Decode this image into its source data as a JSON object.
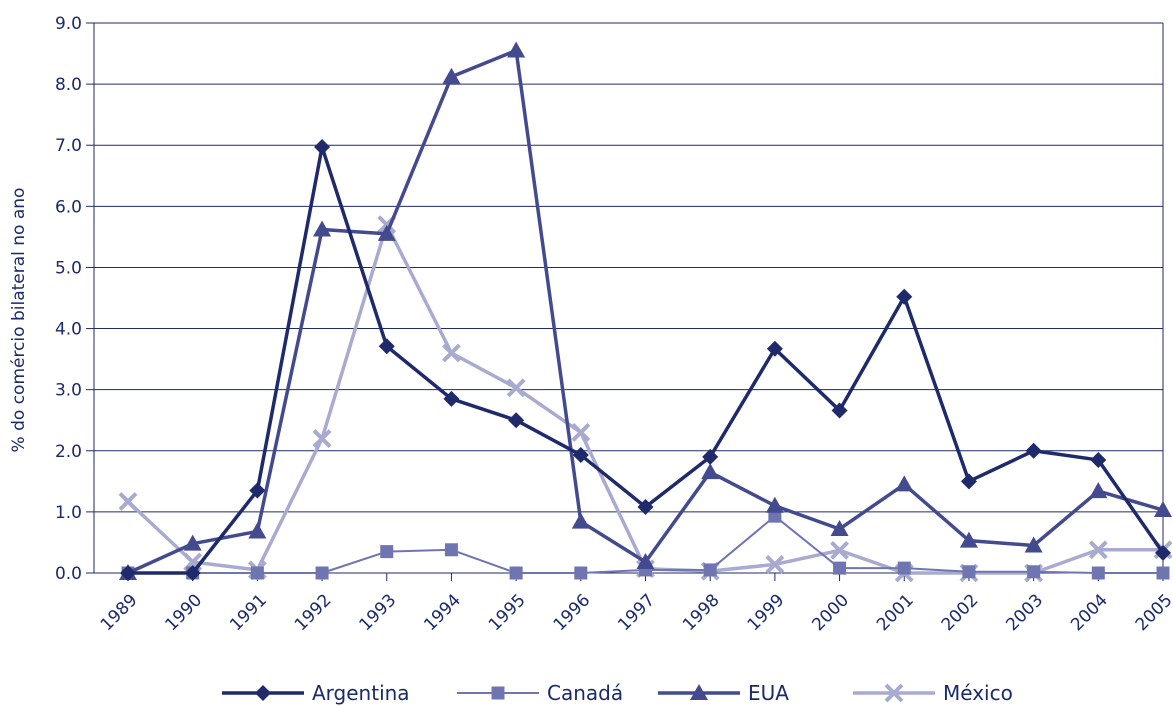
{
  "chart_data": {
    "type": "line",
    "title": "",
    "xlabel": "",
    "ylabel": "% do comércio bilateral no ano",
    "ylim": [
      0,
      9
    ],
    "yticks": [
      "0.0",
      "1.0",
      "2.0",
      "3.0",
      "4.0",
      "5.0",
      "6.0",
      "7.0",
      "8.0",
      "9.0"
    ],
    "grid": true,
    "legend_position": "bottom",
    "categories": [
      "1989",
      "1990",
      "1991",
      "1992",
      "1993",
      "1994",
      "1995",
      "1996",
      "1997",
      "1998",
      "1999",
      "2000",
      "2001",
      "2002",
      "2003",
      "2004",
      "2005"
    ],
    "series": [
      {
        "name": "Argentina",
        "color": "#1f2a6b",
        "marker": "diamond",
        "width": 3.5,
        "values": [
          0.0,
          0.0,
          1.35,
          6.97,
          3.71,
          2.85,
          2.5,
          1.93,
          1.08,
          1.9,
          3.67,
          2.66,
          4.52,
          1.5,
          2.0,
          1.85,
          0.33
        ]
      },
      {
        "name": "Canadá",
        "color": "#6f75b1",
        "marker": "square",
        "width": 2,
        "values": [
          0.0,
          0.0,
          0.0,
          0.0,
          0.35,
          0.38,
          0.0,
          0.0,
          0.05,
          0.05,
          0.93,
          0.08,
          0.08,
          0.02,
          0.02,
          0.0,
          0.0
        ]
      },
      {
        "name": "EUA",
        "color": "#434a8e",
        "marker": "triangle",
        "width": 3.5,
        "values": [
          0.0,
          0.48,
          0.68,
          5.62,
          5.55,
          8.12,
          8.55,
          0.84,
          0.18,
          1.65,
          1.1,
          0.72,
          1.45,
          0.53,
          0.45,
          1.34,
          1.03
        ]
      },
      {
        "name": "México",
        "color": "#a8abcf",
        "marker": "x",
        "width": 3.5,
        "values": [
          1.17,
          0.18,
          0.05,
          2.2,
          5.7,
          3.6,
          3.03,
          2.3,
          0.07,
          0.03,
          0.14,
          0.37,
          0.0,
          0.0,
          0.0,
          0.38,
          0.38
        ]
      }
    ]
  }
}
